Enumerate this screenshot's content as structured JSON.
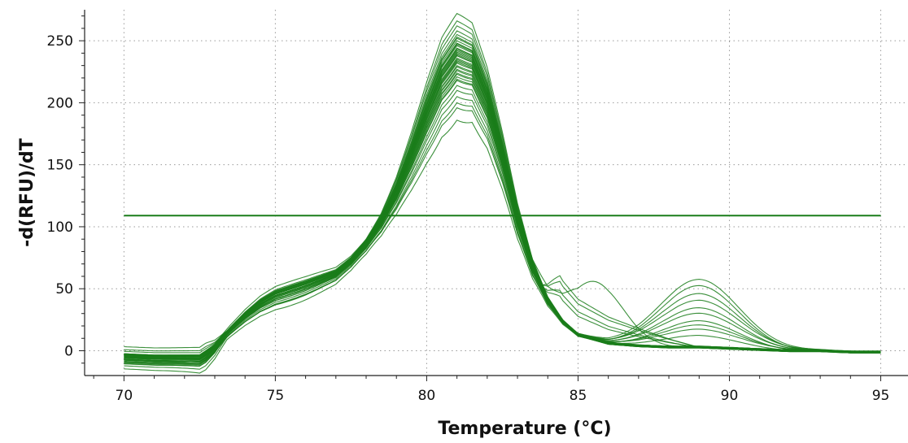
{
  "chart_data": {
    "type": "line",
    "title": "",
    "xlabel": "Temperature (°C)",
    "ylabel": "-d(RFU)/dT",
    "xlim": [
      68.7,
      95.9
    ],
    "ylim": [
      -20,
      275
    ],
    "xticks": [
      70,
      75,
      80,
      85,
      90,
      95
    ],
    "yticks": [
      0,
      50,
      100,
      150,
      200,
      250
    ],
    "grid": true,
    "legend": "none",
    "line_color": "#1a7d1a",
    "threshold": {
      "value": 109,
      "x_range": [
        70,
        95
      ]
    },
    "base_curve": {
      "x": [
        70,
        71,
        72,
        72.5,
        73,
        73.5,
        74,
        74.5,
        75,
        76,
        77,
        77.5,
        78,
        78.5,
        79,
        79.5,
        80,
        80.5,
        81,
        81.5,
        82,
        82.5,
        83,
        83.5,
        84,
        84.5,
        85,
        86,
        87,
        88,
        89,
        90,
        91,
        92,
        93,
        94,
        95
      ],
      "y": [
        -2,
        -3,
        -3,
        -3,
        5,
        18,
        30,
        40,
        47,
        55,
        64,
        74,
        88,
        107,
        133,
        165,
        200,
        232,
        250,
        244,
        212,
        165,
        112,
        70,
        42,
        24,
        13,
        6,
        4,
        3,
        3,
        2,
        1,
        0,
        0,
        -1,
        -1
      ]
    },
    "series": [
      {
        "peak": 272,
        "shoulder": 50,
        "bump2": 0,
        "base": 6
      },
      {
        "peak": 266,
        "shoulder": 48,
        "bump2": 0,
        "base": 3
      },
      {
        "peak": 262,
        "shoulder": 47,
        "bump2": 0,
        "base": 1
      },
      {
        "peak": 258,
        "shoulder": 49,
        "bump2": 0,
        "base": 0
      },
      {
        "peak": 255,
        "shoulder": 46,
        "bump2": 0,
        "base": -1
      },
      {
        "peak": 252,
        "shoulder": 45,
        "bump2": 0,
        "base": -2
      },
      {
        "peak": 250,
        "shoulder": 47,
        "bump2": 0,
        "base": -3
      },
      {
        "peak": 248,
        "shoulder": 46,
        "bump2": 0,
        "base": -4
      },
      {
        "peak": 246,
        "shoulder": 45,
        "bump2": 0,
        "base": -2
      },
      {
        "peak": 244,
        "shoulder": 44,
        "bump2": 0,
        "base": -5
      },
      {
        "peak": 242,
        "shoulder": 46,
        "bump2": 0,
        "base": -6
      },
      {
        "peak": 240,
        "shoulder": 45,
        "bump2": 0,
        "base": -3
      },
      {
        "peak": 238,
        "shoulder": 43,
        "bump2": 0,
        "base": -7
      },
      {
        "peak": 236,
        "shoulder": 44,
        "bump2": 0,
        "base": -2
      },
      {
        "peak": 233,
        "shoulder": 42,
        "bump2": 0,
        "base": -8
      },
      {
        "peak": 230,
        "shoulder": 43,
        "bump2": 0,
        "base": -4
      },
      {
        "peak": 227,
        "shoulder": 41,
        "bump2": 0,
        "base": -1
      },
      {
        "peak": 224,
        "shoulder": 42,
        "bump2": 0,
        "base": -6
      },
      {
        "peak": 221,
        "shoulder": 40,
        "bump2": 0,
        "base": -3
      },
      {
        "peak": 218,
        "shoulder": 41,
        "bump2": 0,
        "base": -9
      },
      {
        "peak": 214,
        "shoulder": 39,
        "bump2": 0,
        "base": -2
      },
      {
        "peak": 210,
        "shoulder": 40,
        "bump2": 0,
        "base": -5
      },
      {
        "peak": 205,
        "shoulder": 38,
        "bump2": 0,
        "base": -4
      },
      {
        "peak": 200,
        "shoulder": 37,
        "bump2": 0,
        "base": -10
      },
      {
        "peak": 196,
        "shoulder": 36,
        "bump2": 0,
        "base": -6
      },
      {
        "peak": 186,
        "shoulder": 33,
        "bump2": 0,
        "base": -12
      },
      {
        "peak": 253,
        "shoulder": 52,
        "bump2": 0,
        "base": -2,
        "bump1": 55
      },
      {
        "peak": 248,
        "shoulder": 47,
        "bump2": 54,
        "base": -1
      },
      {
        "peak": 244,
        "shoulder": 46,
        "bump2": 50,
        "base": -3
      },
      {
        "peak": 241,
        "shoulder": 48,
        "bump2": 43,
        "base": -2
      },
      {
        "peak": 238,
        "shoulder": 45,
        "bump2": 37,
        "base": -4
      },
      {
        "peak": 235,
        "shoulder": 46,
        "bump2": 32,
        "base": -5
      },
      {
        "peak": 232,
        "shoulder": 44,
        "bump2": 27,
        "base": -3
      },
      {
        "peak": 229,
        "shoulder": 45,
        "bump2": 22,
        "base": -6
      },
      {
        "peak": 226,
        "shoulder": 43,
        "bump2": 18,
        "base": -2
      },
      {
        "peak": 223,
        "shoulder": 44,
        "bump2": 14,
        "base": -4
      },
      {
        "peak": 219,
        "shoulder": 42,
        "bump2": 10,
        "base": -7
      },
      {
        "peak": 247,
        "shoulder": 47,
        "bump2": 0,
        "base": -1,
        "tail": 33
      },
      {
        "peak": 243,
        "shoulder": 46,
        "bump2": 0,
        "base": -3,
        "tail": 28
      },
      {
        "peak": 239,
        "shoulder": 45,
        "bump2": 0,
        "base": -2,
        "tail": 22
      },
      {
        "peak": 234,
        "shoulder": 44,
        "bump2": 0,
        "base": -5,
        "tail": 17
      }
    ]
  }
}
